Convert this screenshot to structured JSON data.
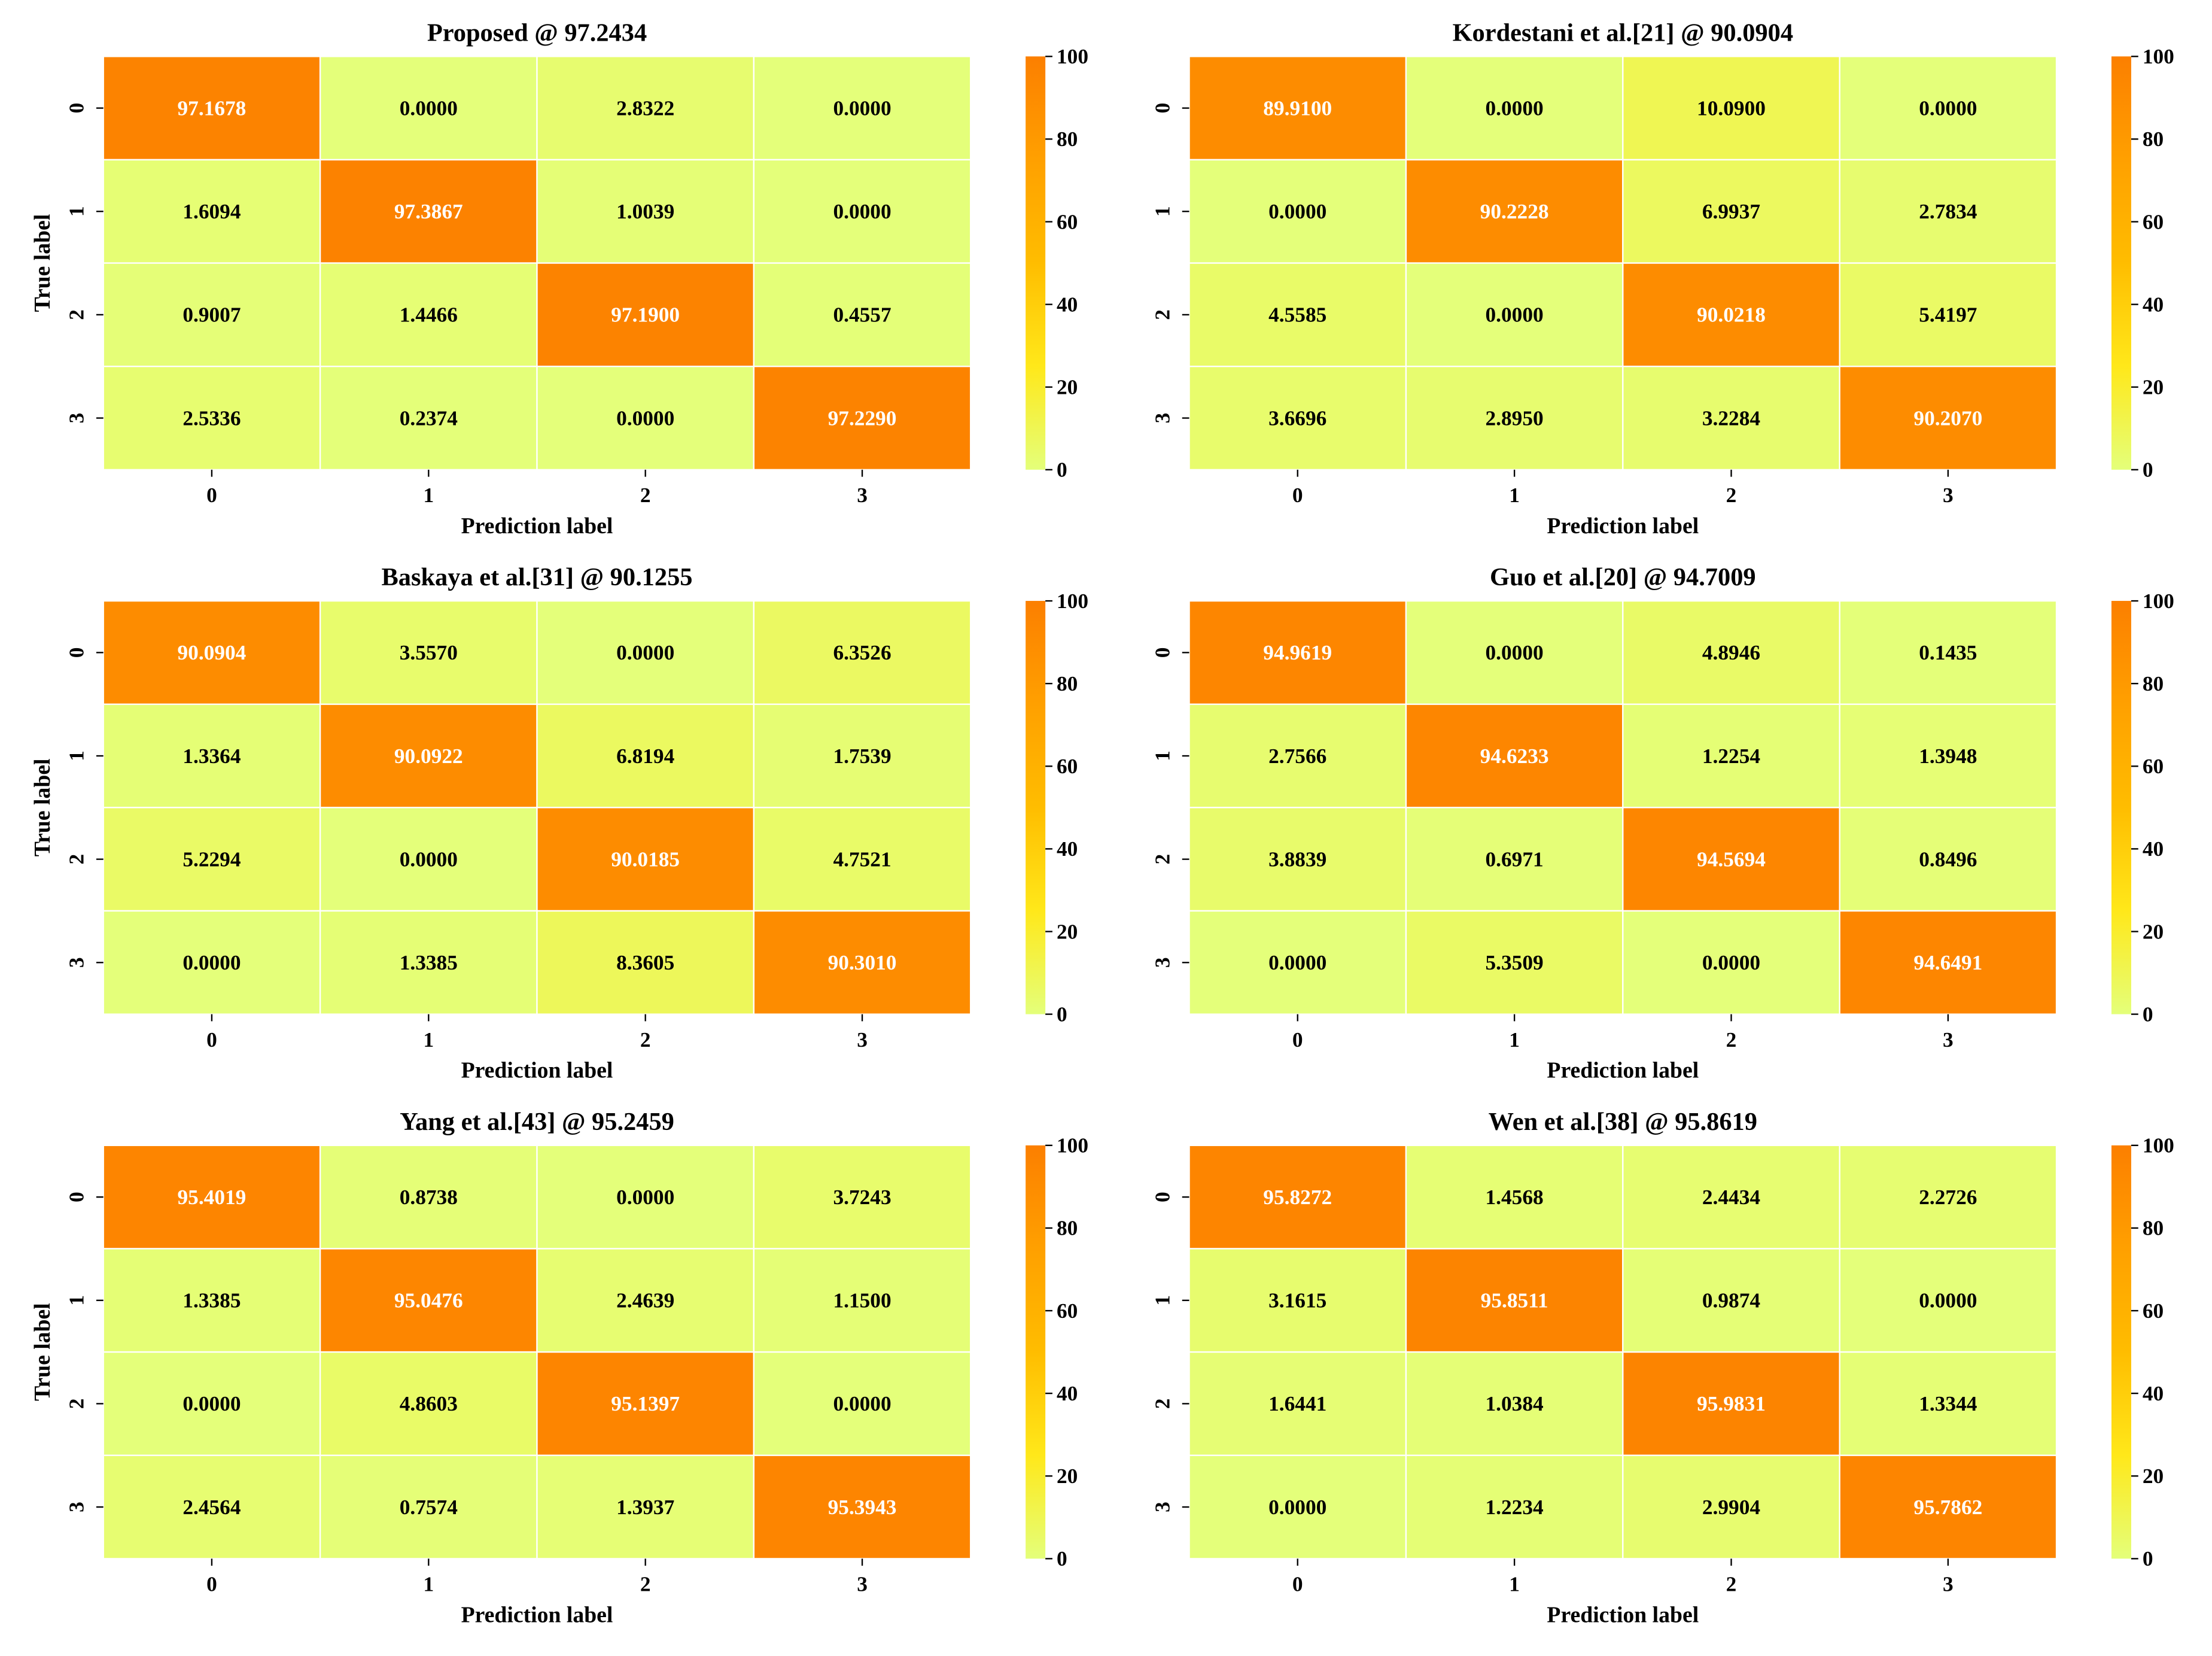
{
  "colormap": {
    "stops": [
      "#e4ff7a",
      "#ffe81a",
      "#ffbd00",
      "#ffa000",
      "#fc7f00"
    ],
    "cell_border": "#ffffff",
    "text_dark": "#000000",
    "text_light": "#ffffff"
  },
  "chart_data": [
    {
      "type": "heatmap",
      "title": "Proposed @ 97.2434",
      "xlabel": "Prediction label",
      "ylabel": "True label",
      "x_categories": [
        "0",
        "1",
        "2",
        "3"
      ],
      "y_categories": [
        "0",
        "1",
        "2",
        "3"
      ],
      "values": [
        [
          "97.1678",
          "0.0000",
          "2.8322",
          "0.0000"
        ],
        [
          "1.6094",
          "97.3867",
          "1.0039",
          "0.0000"
        ],
        [
          "0.9007",
          "1.4466",
          "97.1900",
          "0.4557"
        ],
        [
          "2.5336",
          "0.2374",
          "0.0000",
          "97.2290"
        ]
      ],
      "colorbar": {
        "range": [
          0,
          100
        ],
        "ticks": [
          "0",
          "20",
          "40",
          "60",
          "80",
          "100"
        ]
      }
    },
    {
      "type": "heatmap",
      "title": "Kordestani et al.[21] @ 90.0904",
      "xlabel": "Prediction label",
      "ylabel": "",
      "x_categories": [
        "0",
        "1",
        "2",
        "3"
      ],
      "y_categories": [
        "0",
        "1",
        "2",
        "3"
      ],
      "values": [
        [
          "89.9100",
          "0.0000",
          "10.0900",
          "0.0000"
        ],
        [
          "0.0000",
          "90.2228",
          "6.9937",
          "2.7834"
        ],
        [
          "4.5585",
          "0.0000",
          "90.0218",
          "5.4197"
        ],
        [
          "3.6696",
          "2.8950",
          "3.2284",
          "90.2070"
        ]
      ],
      "colorbar": {
        "range": [
          0,
          100
        ],
        "ticks": [
          "0",
          "20",
          "40",
          "60",
          "80",
          "100"
        ]
      }
    },
    {
      "type": "heatmap",
      "title": "Baskaya et al.[31] @ 90.1255",
      "xlabel": "Prediction label",
      "ylabel": "True label",
      "x_categories": [
        "0",
        "1",
        "2",
        "3"
      ],
      "y_categories": [
        "0",
        "1",
        "2",
        "3"
      ],
      "values": [
        [
          "90.0904",
          "3.5570",
          "0.0000",
          "6.3526"
        ],
        [
          "1.3364",
          "90.0922",
          "6.8194",
          "1.7539"
        ],
        [
          "5.2294",
          "0.0000",
          "90.0185",
          "4.7521"
        ],
        [
          "0.0000",
          "1.3385",
          "8.3605",
          "90.3010"
        ]
      ],
      "colorbar": {
        "range": [
          0,
          100
        ],
        "ticks": [
          "0",
          "20",
          "40",
          "60",
          "80",
          "100"
        ]
      }
    },
    {
      "type": "heatmap",
      "title": "Guo et al.[20] @ 94.7009",
      "xlabel": "Prediction label",
      "ylabel": "",
      "x_categories": [
        "0",
        "1",
        "2",
        "3"
      ],
      "y_categories": [
        "0",
        "1",
        "2",
        "3"
      ],
      "values": [
        [
          "94.9619",
          "0.0000",
          "4.8946",
          "0.1435"
        ],
        [
          "2.7566",
          "94.6233",
          "1.2254",
          "1.3948"
        ],
        [
          "3.8839",
          "0.6971",
          "94.5694",
          "0.8496"
        ],
        [
          "0.0000",
          "5.3509",
          "0.0000",
          "94.6491"
        ]
      ],
      "colorbar": {
        "range": [
          0,
          100
        ],
        "ticks": [
          "0",
          "20",
          "40",
          "60",
          "80",
          "100"
        ]
      }
    },
    {
      "type": "heatmap",
      "title": "Yang et al.[43] @ 95.2459",
      "xlabel": "Prediction label",
      "ylabel": "True label",
      "x_categories": [
        "0",
        "1",
        "2",
        "3"
      ],
      "y_categories": [
        "0",
        "1",
        "2",
        "3"
      ],
      "values": [
        [
          "95.4019",
          "0.8738",
          "0.0000",
          "3.7243"
        ],
        [
          "1.3385",
          "95.0476",
          "2.4639",
          "1.1500"
        ],
        [
          "0.0000",
          "4.8603",
          "95.1397",
          "0.0000"
        ],
        [
          "2.4564",
          "0.7574",
          "1.3937",
          "95.3943"
        ]
      ],
      "colorbar": {
        "range": [
          0,
          100
        ],
        "ticks": [
          "0",
          "20",
          "40",
          "60",
          "80",
          "100"
        ]
      }
    },
    {
      "type": "heatmap",
      "title": "Wen et al.[38] @ 95.8619",
      "xlabel": "Prediction label",
      "ylabel": "",
      "x_categories": [
        "0",
        "1",
        "2",
        "3"
      ],
      "y_categories": [
        "0",
        "1",
        "2",
        "3"
      ],
      "values": [
        [
          "95.8272",
          "1.4568",
          "2.4434",
          "2.2726"
        ],
        [
          "3.1615",
          "95.8511",
          "0.9874",
          "0.0000"
        ],
        [
          "1.6441",
          "1.0384",
          "95.9831",
          "1.3344"
        ],
        [
          "0.0000",
          "1.2234",
          "2.9904",
          "95.7862"
        ]
      ],
      "colorbar": {
        "range": [
          0,
          100
        ],
        "ticks": [
          "0",
          "20",
          "40",
          "60",
          "80",
          "100"
        ]
      }
    }
  ]
}
